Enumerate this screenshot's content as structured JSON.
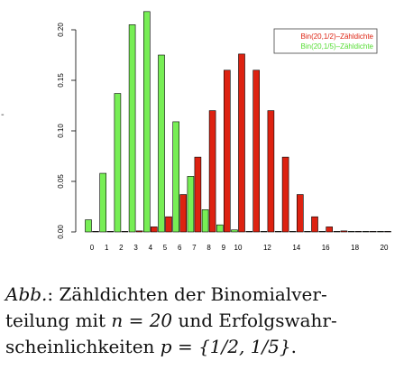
{
  "chart_data": {
    "type": "bar",
    "categories": [
      0,
      1,
      2,
      3,
      4,
      5,
      6,
      7,
      8,
      9,
      10,
      11,
      12,
      13,
      14,
      15,
      16,
      17,
      18,
      19,
      20
    ],
    "x_tick_labels": [
      "0",
      "1",
      "2",
      "3",
      "4",
      "5",
      "6",
      "7",
      "8",
      "9",
      "10",
      "12",
      "14",
      "16",
      "18",
      "20"
    ],
    "y_tick_labels": [
      "0.00",
      "0.05",
      "0.10",
      "0.15",
      "0.20"
    ],
    "ylim": [
      0,
      0.2
    ],
    "grid": false,
    "legend_position": "top-right",
    "series": [
      {
        "name": "Bin(20,1/2)–Zähldichte",
        "color": "#dd2211",
        "values": [
          0.0,
          0.0,
          0.0,
          0.001,
          0.005,
          0.015,
          0.037,
          0.074,
          0.12,
          0.16,
          0.176,
          0.16,
          0.12,
          0.074,
          0.037,
          0.015,
          0.005,
          0.001,
          0.0,
          0.0,
          0.0
        ]
      },
      {
        "name": "Bin(20,1/5)–Zähldichte",
        "color": "#77ee55",
        "values": [
          0.012,
          0.058,
          0.137,
          0.205,
          0.218,
          0.175,
          0.109,
          0.055,
          0.022,
          0.007,
          0.002,
          0.0,
          0.0,
          0.0,
          0.0,
          0.0,
          0.0,
          0.0,
          0.0,
          0.0,
          0.0
        ]
      }
    ]
  },
  "caption": {
    "abb": "Abb.",
    "line1_rest": ": Zähldichten der Binomialver-",
    "line2_pre": "teilung mit ",
    "line2_math": "n = 20",
    "line2_post": " und Erfolgswahr-",
    "line3_pre": "scheinlichkeiten ",
    "line3_math": "p = {1/2, 1/5}",
    "line3_post": "."
  }
}
